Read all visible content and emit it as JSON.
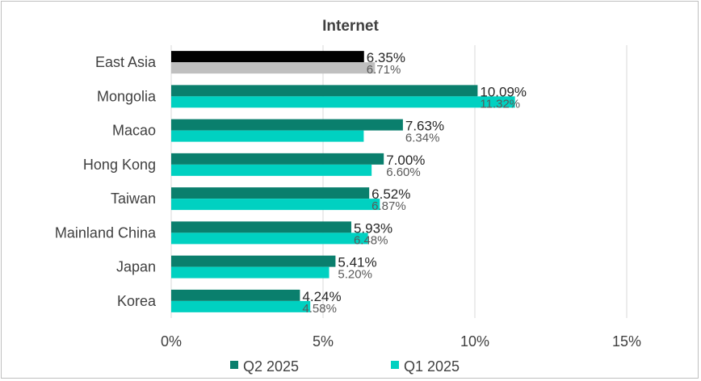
{
  "chart_data": {
    "type": "bar",
    "orientation": "horizontal",
    "title": "Internet",
    "categories": [
      "East Asia",
      "Mongolia",
      "Macao",
      "Hong Kong",
      "Taiwan",
      "Mainland China",
      "Japan",
      "Korea"
    ],
    "series": [
      {
        "name": "Q2 2025",
        "values": [
          6.35,
          10.09,
          7.63,
          7.0,
          6.52,
          5.93,
          5.41,
          4.24
        ],
        "labels": [
          "6.35%",
          "10.09%",
          "7.63%",
          "7.00%",
          "6.52%",
          "5.93%",
          "5.41%",
          "4.24%"
        ],
        "color": "#0a7f6d",
        "highlight_color": "#000000"
      },
      {
        "name": "Q1 2025",
        "values": [
          6.71,
          11.32,
          6.34,
          6.6,
          6.87,
          6.48,
          5.2,
          4.58
        ],
        "labels": [
          "6.71%",
          "11.32%",
          "6.34%",
          "6.60%",
          "6.87%",
          "6.48%",
          "5.20%",
          "4.58%"
        ],
        "color": "#00d1c1",
        "highlight_color": "#bfbfbf"
      }
    ],
    "highlight_category": "East Asia",
    "x_ticks": [
      0,
      5,
      10,
      15
    ],
    "x_tick_labels": [
      "0%",
      "5%",
      "10%",
      "15%"
    ],
    "xlim": [
      0,
      15
    ],
    "grid": true,
    "legend_position": "bottom"
  }
}
